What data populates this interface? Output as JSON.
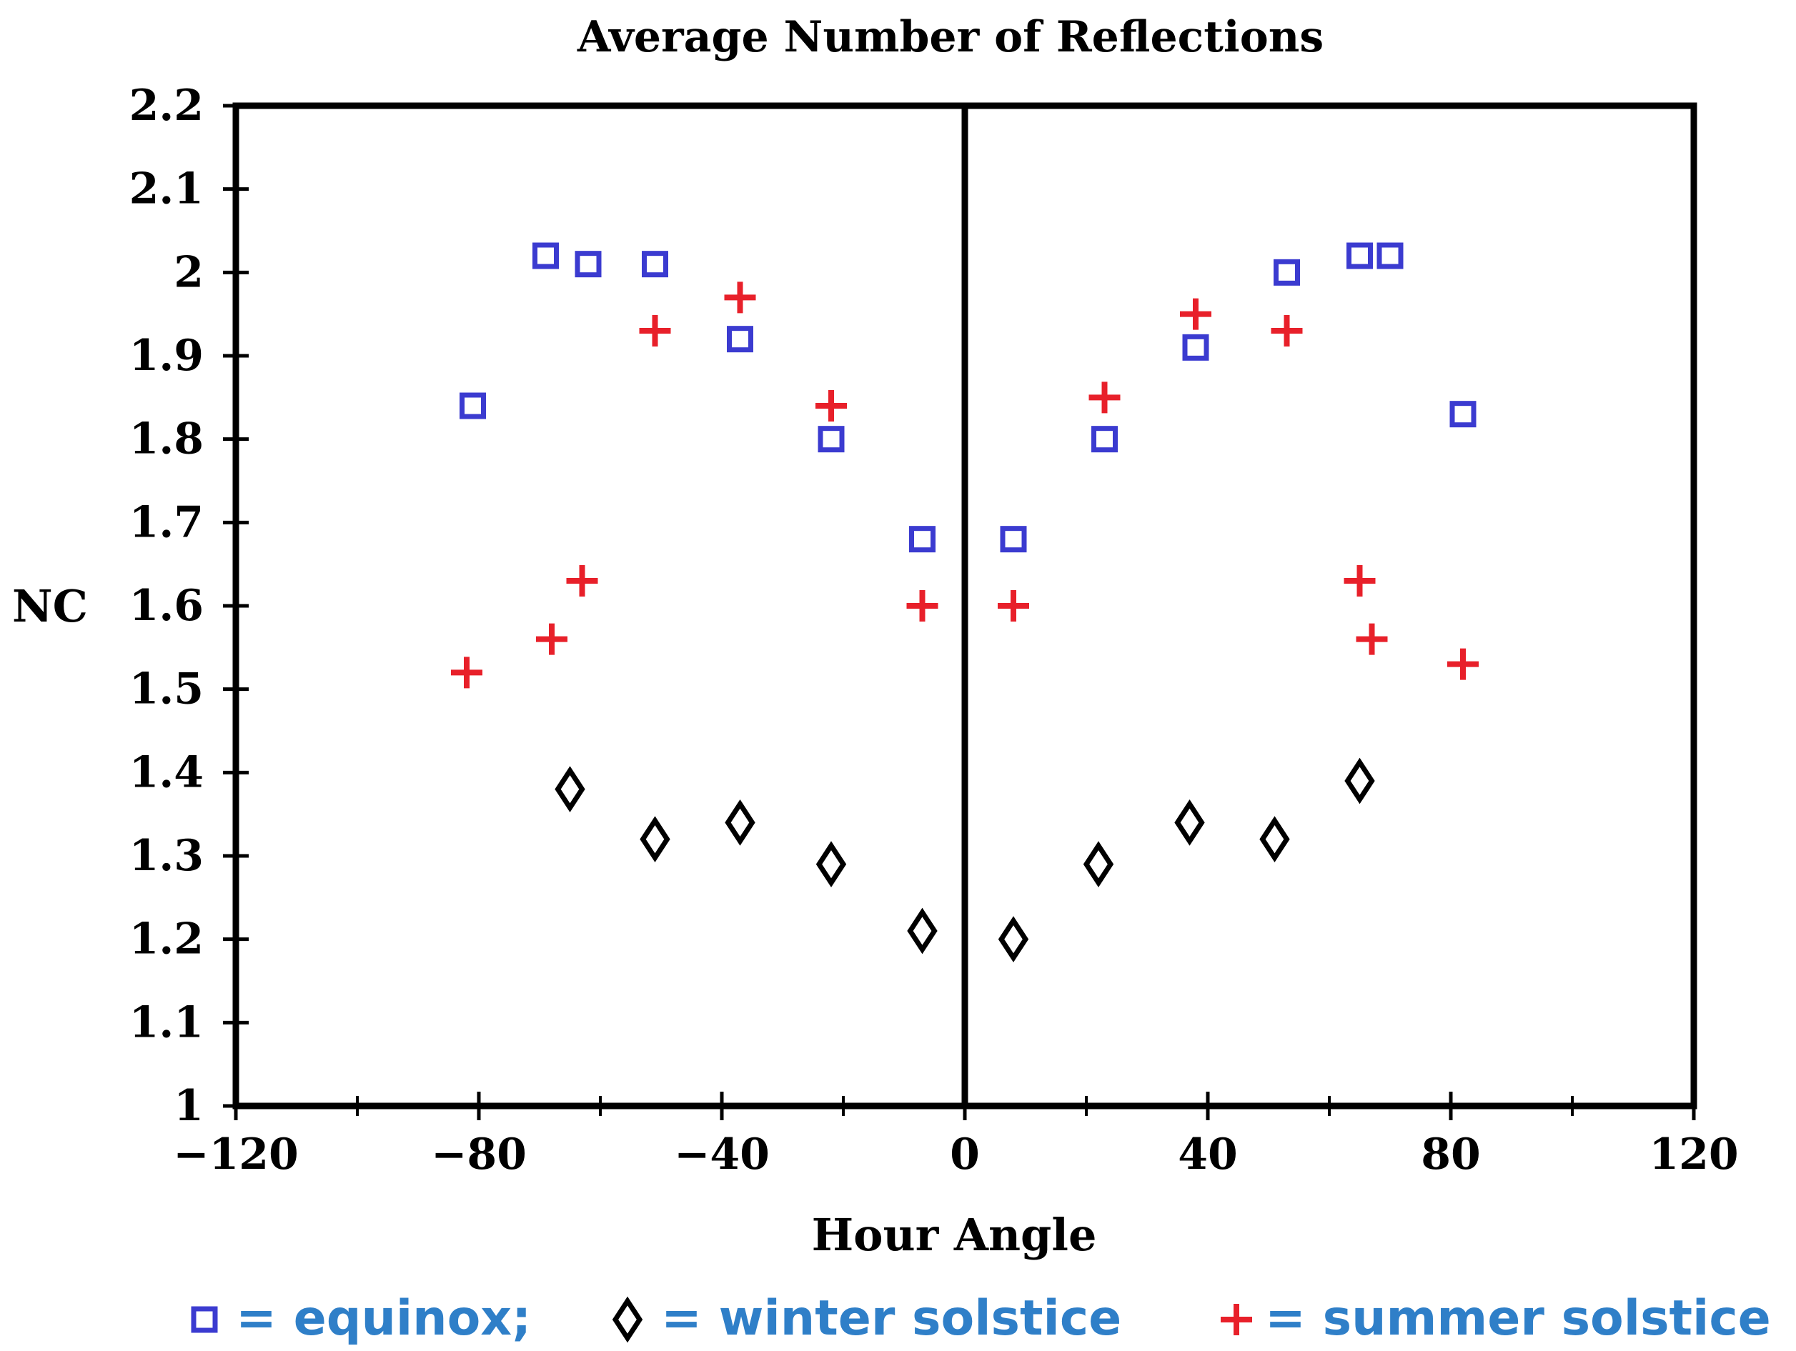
{
  "colors": {
    "equinox": "#3b3bd0",
    "winter": "#000000",
    "summer": "#e8202a",
    "legend_text": "#2f7fc8",
    "axis": "#000000"
  },
  "chart_data": {
    "type": "scatter",
    "title": "Average Number of Reflections",
    "xlabel": "Hour Angle",
    "ylabel": "NC",
    "xlim": [
      -120,
      120
    ],
    "ylim": [
      1,
      2.2
    ],
    "x_ticks": [
      -120,
      -80,
      -40,
      0,
      40,
      80,
      120
    ],
    "x_tick_labels": [
      "−120",
      "−80",
      "−40",
      "0",
      "40",
      "80",
      "120"
    ],
    "y_ticks": [
      1,
      1.1,
      1.2,
      1.3,
      1.4,
      1.5,
      1.6,
      1.7,
      1.8,
      1.9,
      2,
      2.1,
      2.2
    ],
    "y_tick_labels": [
      "1",
      "1.1",
      "1.2",
      "1.3",
      "1.4",
      "1.5",
      "1.6",
      "1.7",
      "1.8",
      "1.9",
      "2",
      "2.1",
      "2.2"
    ],
    "reference_line_x": 0,
    "series": [
      {
        "name": "equinox",
        "marker": "square",
        "x": [
          -81,
          -69,
          -62,
          -51,
          -37,
          -22,
          -7,
          8,
          23,
          38,
          53,
          65,
          70,
          82
        ],
        "y": [
          1.84,
          2.02,
          2.01,
          2.01,
          1.92,
          1.8,
          1.68,
          1.68,
          1.8,
          1.91,
          2.0,
          2.02,
          2.02,
          1.83
        ]
      },
      {
        "name": "winter solstice",
        "marker": "diamond",
        "x": [
          -65,
          -51,
          -37,
          -22,
          -7,
          8,
          22,
          37,
          51,
          65
        ],
        "y": [
          1.38,
          1.32,
          1.34,
          1.29,
          1.21,
          1.2,
          1.29,
          1.34,
          1.32,
          1.39
        ]
      },
      {
        "name": "summer solstice",
        "marker": "plus",
        "x": [
          -82,
          -68,
          -63,
          -51,
          -37,
          -22,
          -7,
          8,
          23,
          38,
          53,
          65,
          67,
          82
        ],
        "y": [
          1.52,
          1.56,
          1.63,
          1.93,
          1.97,
          1.84,
          1.6,
          1.6,
          1.85,
          1.95,
          1.93,
          1.63,
          1.56,
          1.53
        ]
      }
    ],
    "legend": {
      "position": "bottom",
      "entries": [
        {
          "marker": "square",
          "label": "= equinox;"
        },
        {
          "marker": "diamond",
          "label": "= winter solstice"
        },
        {
          "marker": "plus",
          "label": "= summer solstice"
        }
      ]
    }
  }
}
